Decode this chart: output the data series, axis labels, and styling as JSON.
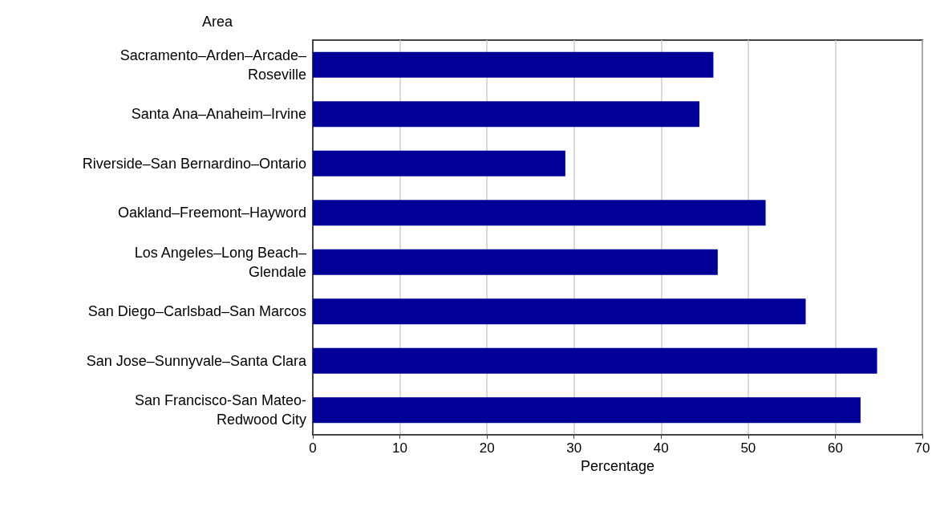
{
  "chart_data": {
    "type": "bar",
    "orientation": "horizontal",
    "ylabel": "Area",
    "xlabel": "Percentage",
    "categories": [
      "Sacramento–Arden–Arcade–\nRoseville",
      "Santa Ana–Anaheim–Irvine",
      "Riverside–San Bernardino–Ontario",
      "Oakland–Freemont–Hayword",
      "Los Angeles–Long Beach–\nGlendale",
      "San Diego–Carlsbad–San Marcos",
      "San Jose–Sunnyvale–Santa Clara",
      "San Francisco-San Mateo-\nRedwood City"
    ],
    "values": [
      46.0,
      44.4,
      29.0,
      52.0,
      46.5,
      56.6,
      64.8,
      62.9
    ],
    "color": "#000099",
    "xlim": [
      0,
      70
    ],
    "xticks": [
      0,
      10,
      20,
      30,
      40,
      50,
      60,
      70
    ],
    "grid": "x"
  }
}
